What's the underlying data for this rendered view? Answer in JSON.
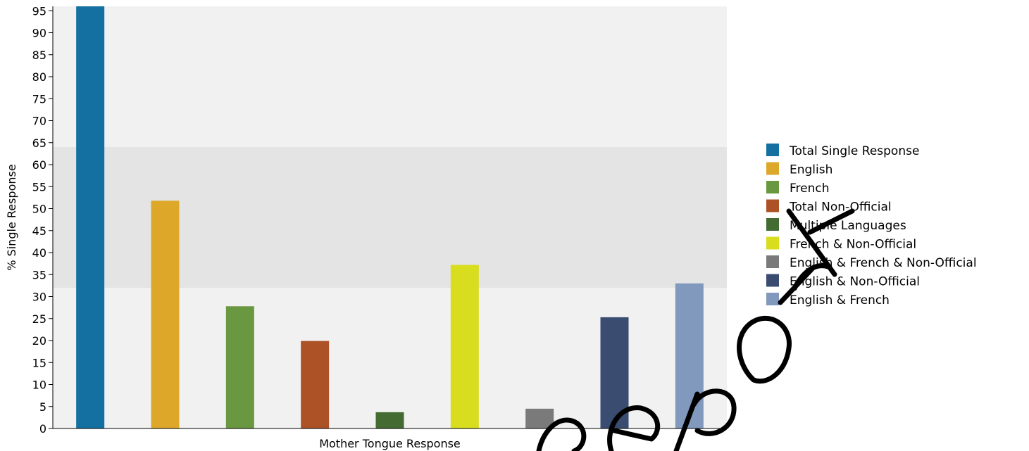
{
  "chart_data": {
    "type": "bar",
    "xlabel": "Mother Tongue Response",
    "ylabel": "% Single Response",
    "ylim": [
      0,
      96
    ],
    "yticks": [
      0,
      5,
      10,
      15,
      20,
      25,
      30,
      35,
      40,
      45,
      50,
      55,
      60,
      65,
      70,
      75,
      80,
      85,
      90,
      95
    ],
    "legend_position": "right",
    "shaded_band": [
      32,
      64
    ],
    "series": [
      {
        "name": "Total Single Response",
        "value": 96,
        "color": "#1470a0"
      },
      {
        "name": "English",
        "value": 51.8,
        "color": "#dda82a"
      },
      {
        "name": "French",
        "value": 27.8,
        "color": "#6a9840"
      },
      {
        "name": "Total Non-Official",
        "value": 19.9,
        "color": "#ad5226"
      },
      {
        "name": "Multiple Languages",
        "value": 3.7,
        "color": "#436b32"
      },
      {
        "name": "French & Non-Official",
        "value": 37.2,
        "color": "#d8dd1e"
      },
      {
        "name": "English & French & Non-Official",
        "value": 4.5,
        "color": "#7a7a7a"
      },
      {
        "name": "English & Non-Official",
        "value": 25.3,
        "color": "#3a4d71"
      },
      {
        "name": "English & French",
        "value": 33,
        "color": "#8199bc"
      }
    ]
  },
  "watermark": {
    "text": "Report",
    "color": "#000000"
  }
}
